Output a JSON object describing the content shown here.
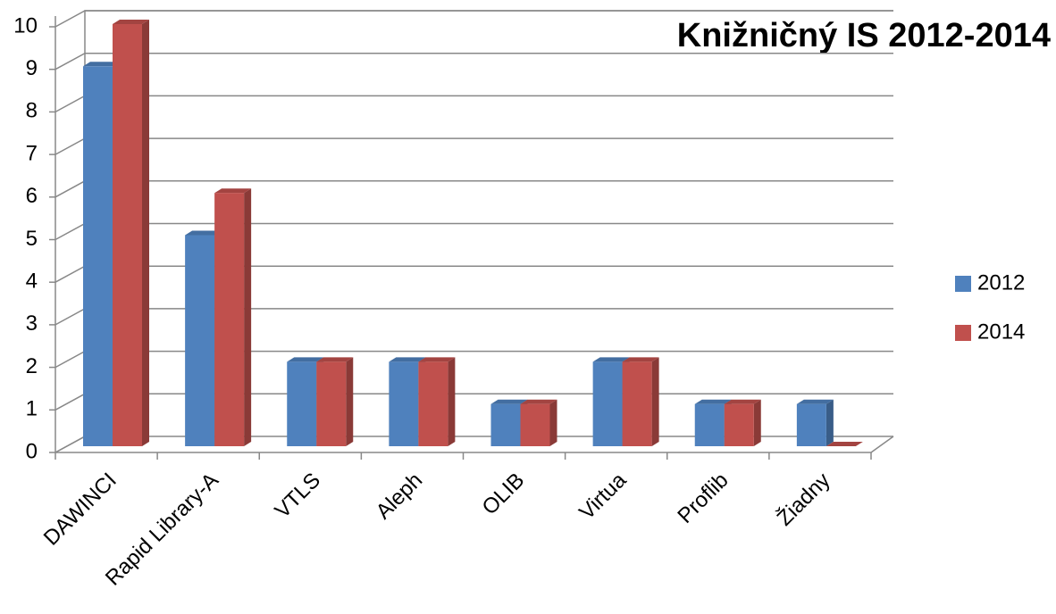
{
  "chart_data": {
    "type": "bar3d",
    "title": "Knižničný IS 2012-2014",
    "categories": [
      "DAWINCI",
      "Rapid Library-A",
      "VTLS",
      "Aleph",
      "OLIB",
      "Virtua",
      "Proflib",
      "Žiadny"
    ],
    "series": [
      {
        "name": "2012",
        "color": "#4f81bd",
        "values": [
          9,
          5,
          2,
          2,
          1,
          2,
          1,
          1
        ]
      },
      {
        "name": "2014",
        "color": "#c0504d",
        "values": [
          10,
          6,
          2,
          2,
          1,
          2,
          1,
          0
        ]
      }
    ],
    "ylim": [
      0,
      10
    ],
    "yticks": [
      0,
      1,
      2,
      3,
      4,
      5,
      6,
      7,
      8,
      9,
      10
    ],
    "grid": true,
    "legend": "right"
  }
}
